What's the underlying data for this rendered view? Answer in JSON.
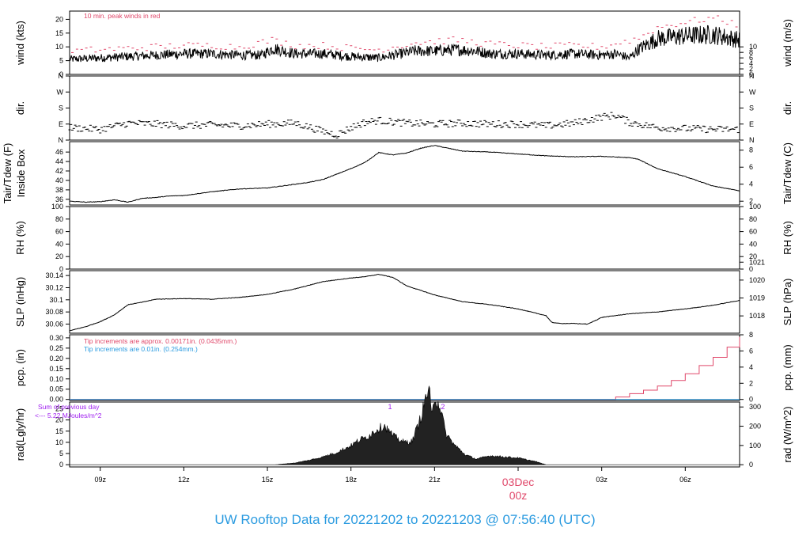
{
  "title": "UW Rooftop Data for 20221202  to  20221203 @ 07:56:40  (UTC)",
  "colors": {
    "axis": "#000000",
    "series": "#000000",
    "peak": "#e0486a",
    "pcp_red": "#e0486a",
    "pcp_blue": "#2b9be0",
    "rad_note": "#a020f0",
    "date_label": "#e0486a",
    "title": "#2b9be0"
  },
  "time_axis": {
    "start_hour": 7.9,
    "end_hour": 31.95,
    "ticks": [
      {
        "hour": 9,
        "label": "09z"
      },
      {
        "hour": 12,
        "label": "12z"
      },
      {
        "hour": 15,
        "label": "15z"
      },
      {
        "hour": 18,
        "label": "18z"
      },
      {
        "hour": 21,
        "label": "21z"
      },
      {
        "hour": 27,
        "label": "03z"
      },
      {
        "hour": 30,
        "label": "06z"
      }
    ],
    "day_break": {
      "hour": 24,
      "date": "03Dec",
      "time": "00z"
    }
  },
  "chart_data": [
    {
      "id": "wind",
      "type": "line",
      "ylabel_left": "wind (kts)",
      "ylabel_right": "wind (m/s)",
      "ylim": [
        0,
        23
      ],
      "left_ticks": [
        0,
        5,
        10,
        15,
        20
      ],
      "right_ticks": [
        {
          "v": 0,
          "l": "0"
        },
        {
          "v": 2,
          "l": "2"
        },
        {
          "v": 4,
          "l": "4"
        },
        {
          "v": 6,
          "l": "6"
        },
        {
          "v": 8,
          "l": "8"
        },
        {
          "v": 10,
          "l": "10"
        }
      ],
      "right_factor": 1.94384,
      "annotation": "10 min. peak winds in red",
      "series": [
        {
          "role": "mean",
          "x": [
            7.9,
            9,
            10,
            11,
            12,
            13,
            14,
            14.8,
            15.2,
            16,
            17,
            18,
            19,
            19.8,
            20.3,
            21,
            21.8,
            22.5,
            23,
            24,
            25,
            26,
            27,
            27.5,
            28,
            28.3,
            29,
            30,
            31,
            31.95
          ],
          "y": [
            5.5,
            6,
            6.5,
            7,
            7.5,
            7.5,
            7,
            7,
            9.5,
            7.5,
            7.5,
            6.5,
            6,
            7.5,
            8.5,
            8.5,
            9,
            8.5,
            7.5,
            7.5,
            7,
            7.5,
            7,
            7.5,
            6,
            9,
            13,
            14,
            14.5,
            12.5
          ]
        },
        {
          "role": "peak",
          "x": [
            7.9,
            9,
            10,
            11,
            12,
            13,
            14,
            15.2,
            16,
            17,
            18,
            19,
            20.3,
            21,
            21.8,
            23,
            24,
            25,
            26,
            27,
            28.3,
            29,
            30,
            31,
            31.95
          ],
          "y": [
            8.5,
            9,
            9.5,
            10,
            10.5,
            10.5,
            10,
            12.5,
            10.5,
            10.5,
            9.5,
            9,
            11.5,
            12,
            12.5,
            11,
            10.5,
            10,
            10.5,
            10,
            13,
            17,
            19,
            20.5,
            18
          ]
        }
      ]
    },
    {
      "id": "dir",
      "type": "scatter",
      "ylabel_left": "dir.",
      "ylabel_right": "dir.",
      "ylim": [
        0,
        360
      ],
      "left_ticks": [
        {
          "v": 0,
          "l": "N"
        },
        {
          "v": 90,
          "l": "E"
        },
        {
          "v": 180,
          "l": "S"
        },
        {
          "v": 270,
          "l": "W"
        },
        {
          "v": 360,
          "l": "N"
        }
      ],
      "right_ticks": [
        {
          "v": 0,
          "l": "N"
        },
        {
          "v": 90,
          "l": "E"
        },
        {
          "v": 180,
          "l": "S"
        },
        {
          "v": 270,
          "l": "W"
        },
        {
          "v": 360,
          "l": "N"
        }
      ],
      "series": [
        {
          "role": "direction",
          "x": [
            7.9,
            9,
            10,
            11,
            12,
            13,
            14,
            15,
            16,
            17,
            17.5,
            18,
            18.5,
            19,
            20,
            21,
            22,
            23,
            24,
            25,
            26,
            27,
            27.5,
            28,
            29,
            30,
            31,
            31.95
          ],
          "y": [
            70,
            60,
            95,
            90,
            80,
            85,
            80,
            90,
            95,
            50,
            30,
            70,
            100,
            110,
            95,
            90,
            95,
            90,
            90,
            80,
            95,
            130,
            140,
            100,
            70,
            65,
            60,
            60
          ]
        }
      ]
    },
    {
      "id": "temp",
      "type": "line",
      "ylabel_left": "Tair/Tdew (F)",
      "ylabel_left2": "Inside Box",
      "ylabel_right": "Tair/Tdew (C)",
      "ylim": [
        34.8,
        48.2
      ],
      "left_ticks": [
        36,
        38,
        40,
        42,
        44,
        46
      ],
      "right_ticks": [
        {
          "v": 35.6,
          "l": "2"
        },
        {
          "v": 39.2,
          "l": "4"
        },
        {
          "v": 42.8,
          "l": "6"
        },
        {
          "v": 46.4,
          "l": "8"
        }
      ],
      "series": [
        {
          "role": "tair",
          "x": [
            7.9,
            8.5,
            9,
            9.5,
            10,
            10.5,
            11,
            11.5,
            12,
            13,
            14,
            15,
            16,
            16.5,
            17,
            18,
            18.5,
            19,
            19.5,
            20,
            20.5,
            21,
            22,
            23,
            24,
            25,
            26,
            27,
            28,
            28.3,
            29,
            30,
            31,
            31.95
          ],
          "y": [
            35.6,
            35.4,
            35.5,
            35.9,
            35.4,
            36.2,
            36.4,
            36.7,
            36.8,
            37.6,
            38.2,
            38.4,
            39.2,
            39.6,
            40.2,
            42.5,
            43.8,
            45.9,
            45.4,
            45.8,
            46.8,
            47.4,
            46.2,
            46,
            45.6,
            45.2,
            45,
            45.1,
            44.8,
            44.5,
            42.5,
            40.8,
            38.8,
            37.8
          ]
        }
      ]
    },
    {
      "id": "rh",
      "type": "line",
      "ylabel_left": "RH (%)",
      "ylabel_right": "RH (%)",
      "ylim": [
        0,
        100
      ],
      "left_ticks": [
        0,
        20,
        40,
        60,
        80,
        100
      ],
      "right_ticks": [
        {
          "v": 0,
          "l": "0"
        },
        {
          "v": 20,
          "l": "20"
        },
        {
          "v": 40,
          "l": "40"
        },
        {
          "v": 60,
          "l": "60"
        },
        {
          "v": 80,
          "l": "80"
        },
        {
          "v": 100,
          "l": "100"
        }
      ],
      "series": []
    },
    {
      "id": "slp",
      "type": "line",
      "ylabel_left": "SLP (inHg)",
      "ylabel_right": "SLP (hPa)",
      "ylim": [
        30.045,
        30.148
      ],
      "left_ticks": [
        30.06,
        30.08,
        30.1,
        30.12,
        30.14
      ],
      "right_ticks": [
        {
          "v": 30.0735,
          "l": "1018"
        },
        {
          "v": 30.103,
          "l": "1019"
        },
        {
          "v": 30.1325,
          "l": "1020"
        },
        {
          "v": 30.162,
          "l": "1021"
        }
      ],
      "series": [
        {
          "role": "slp",
          "x": [
            7.9,
            8.5,
            9,
            9.5,
            10,
            10.5,
            11,
            12,
            13,
            14,
            15,
            16,
            17,
            18,
            18.5,
            19,
            19.5,
            20,
            21,
            22,
            23,
            24,
            25,
            25.2,
            25.5,
            26,
            26.5,
            27,
            28,
            29,
            30,
            31,
            31.95
          ],
          "y": [
            30.049,
            30.056,
            30.064,
            30.075,
            30.092,
            30.096,
            30.101,
            30.102,
            30.101,
            30.104,
            30.109,
            30.118,
            30.13,
            30.136,
            30.138,
            30.142,
            30.137,
            30.123,
            30.108,
            30.097,
            30.092,
            30.085,
            30.074,
            30.063,
            30.061,
            30.061,
            30.06,
            30.071,
            30.077,
            30.08,
            30.085,
            30.091,
            30.099
          ]
        }
      ]
    },
    {
      "id": "pcp",
      "type": "area",
      "ylabel_left": "pcp. (in)",
      "ylabel_right": "pcp. (mm)",
      "ylim": [
        -0.005,
        0.315
      ],
      "left_ticks": [
        {
          "v": 0,
          "l": "0.00"
        },
        {
          "v": 0.05,
          "l": "0.05"
        },
        {
          "v": 0.1,
          "l": "0.10"
        },
        {
          "v": 0.15,
          "l": "0.15"
        },
        {
          "v": 0.2,
          "l": "0.20"
        },
        {
          "v": 0.25,
          "l": "0.25"
        },
        {
          "v": 0.3,
          "l": "0.30"
        }
      ],
      "right_ticks": [
        {
          "v": 0,
          "l": "0"
        },
        {
          "v": 0.0787,
          "l": "2"
        },
        {
          "v": 0.1575,
          "l": "4"
        },
        {
          "v": 0.2362,
          "l": "6"
        },
        {
          "v": 0.315,
          "l": "8"
        }
      ],
      "note_red": "Tip increments are approx. 0.00171in. (0.0435mm.)",
      "note_blue": "Tip increments are 0.01in. (0.254mm.)",
      "series": [
        {
          "role": "accum_red",
          "x": [
            7.9,
            27.0,
            27.5,
            28.0,
            28.5,
            29.0,
            29.5,
            30.0,
            30.5,
            31.0,
            31.5,
            31.95
          ],
          "y": [
            0,
            0,
            0.012,
            0.028,
            0.045,
            0.065,
            0.092,
            0.125,
            0.165,
            0.205,
            0.255,
            0.305
          ]
        },
        {
          "role": "accum_blue",
          "x": [
            7.9,
            31.95
          ],
          "y": [
            0,
            0
          ]
        }
      ]
    },
    {
      "id": "rad",
      "type": "area",
      "ylabel_left": "rad(Lgly/hr)",
      "ylabel_right": "rad (W/m^2)",
      "ylim": [
        -1,
        28
      ],
      "left_ticks": [
        0,
        5,
        10,
        15,
        20,
        25
      ],
      "right_ticks": [
        {
          "v": 0,
          "l": "0"
        },
        {
          "v": 8.6,
          "l": "100"
        },
        {
          "v": 17.2,
          "l": "200"
        },
        {
          "v": 25.8,
          "l": "300"
        }
      ],
      "note_line1": "Sum of previous day",
      "note_line2": "<--- 5.22 MJoules/m^2",
      "markers": [
        {
          "hour": 19.4,
          "label": "1"
        },
        {
          "hour": 21.3,
          "label": "2"
        }
      ],
      "series": [
        {
          "role": "solar",
          "x": [
            7.9,
            15.3,
            16,
            16.5,
            17,
            17.5,
            18,
            18.3,
            18.6,
            18.9,
            19.2,
            19.5,
            19.9,
            20.2,
            20.5,
            20.8,
            20.9,
            21.0,
            21.2,
            21.4,
            21.7,
            22.1,
            22.5,
            23.0,
            23.5,
            24.0,
            24.6,
            25.0,
            31.95
          ],
          "y": [
            0,
            0,
            0.8,
            2,
            3.5,
            5.5,
            8.5,
            11,
            12.5,
            15.5,
            17.5,
            13,
            10,
            10.5,
            21,
            35,
            20,
            31,
            26,
            14,
            9,
            4.5,
            2.5,
            4,
            3.5,
            3,
            1.5,
            0,
            0
          ]
        }
      ]
    }
  ]
}
